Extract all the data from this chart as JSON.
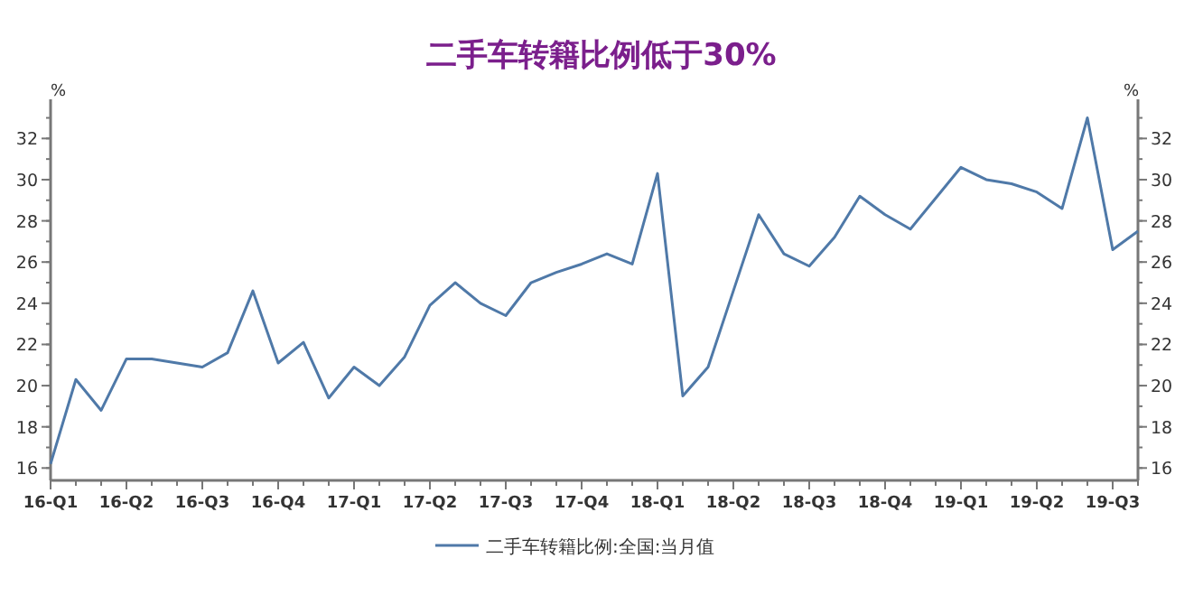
{
  "chart_data": {
    "type": "line",
    "title": "二手车转籍比例低于30%",
    "categories": [
      "16-Q1",
      null,
      null,
      "16-Q2",
      null,
      null,
      "16-Q3",
      null,
      null,
      "16-Q4",
      null,
      null,
      "17-Q1",
      null,
      null,
      "17-Q2",
      null,
      null,
      "17-Q3",
      null,
      null,
      "17-Q4",
      null,
      null,
      "18-Q1",
      null,
      null,
      "18-Q2",
      null,
      null,
      "18-Q3",
      null,
      null,
      "18-Q4",
      null,
      null,
      "19-Q1",
      null,
      null,
      "19-Q2",
      null,
      null,
      "19-Q3",
      null
    ],
    "series": [
      {
        "name": "二手车转籍比例:全国:当月值",
        "color": "#4f79a8",
        "values": [
          16.2,
          20.3,
          18.8,
          21.3,
          21.3,
          21.1,
          20.9,
          21.6,
          24.6,
          21.1,
          22.1,
          19.4,
          20.9,
          20.0,
          21.4,
          23.9,
          25.0,
          24.0,
          23.4,
          25.0,
          25.5,
          25.9,
          26.4,
          25.9,
          30.3,
          19.5,
          20.9,
          24.6,
          28.3,
          26.4,
          25.8,
          27.2,
          29.2,
          28.3,
          27.6,
          29.1,
          30.6,
          30.0,
          29.8,
          29.4,
          28.6,
          33.0,
          26.6,
          27.5
        ]
      }
    ],
    "ylabel": "%",
    "y2label": "%",
    "ylim": [
      15.4,
      33.9
    ],
    "yticks": [
      16,
      18,
      20,
      22,
      24,
      26,
      28,
      30,
      32
    ],
    "y2lim": [
      15.4,
      33.9
    ],
    "y2ticks": [
      16,
      18,
      20,
      22,
      24,
      26,
      28,
      30,
      32
    ],
    "legend": "bottom"
  }
}
